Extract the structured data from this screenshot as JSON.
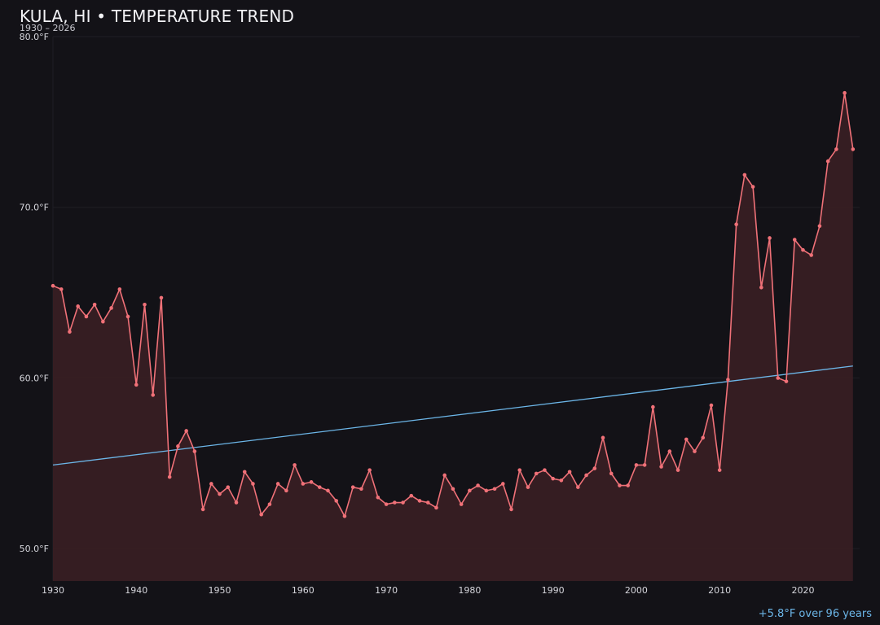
{
  "header": {
    "title": "KULA, HI • TEMPERATURE TREND",
    "subtitle": "1930 – 2026"
  },
  "footer": {
    "trend_note": "+5.8°F over 96 years"
  },
  "colors": {
    "background": "#131217",
    "series": "#f07178",
    "area_fill": "#3a1f24",
    "trend": "#6cb6e8",
    "grid": "#1f1e24"
  },
  "chart_data": {
    "type": "line",
    "title": "KULA, HI • TEMPERATURE TREND",
    "subtitle": "1930 – 2026",
    "xlabel": "",
    "ylabel": "",
    "xlim": [
      1930,
      2026.8
    ],
    "ylim": [
      48.1,
      80.0
    ],
    "x_ticks": [
      1930,
      1940,
      1950,
      1960,
      1970,
      1980,
      1990,
      2000,
      2010,
      2020
    ],
    "y_ticks": [
      50,
      60,
      70,
      80
    ],
    "y_tick_labels": [
      "50.0°F",
      "60.0°F",
      "70.0°F",
      "80.0°F"
    ],
    "grid": true,
    "area_fill": true,
    "series": [
      {
        "x": [
          1930,
          1931,
          1932,
          1933,
          1934,
          1935,
          1936,
          1937,
          1938,
          1939,
          1940,
          1941,
          1942,
          1943,
          1944,
          1945,
          1946,
          1947,
          1948,
          1949,
          1950,
          1951,
          1952,
          1953,
          1954,
          1955,
          1956,
          1957,
          1958,
          1959,
          1960,
          1961,
          1962,
          1963,
          1964,
          1965,
          1966,
          1967,
          1968,
          1969,
          1970,
          1971,
          1972,
          1973,
          1974,
          1975,
          1976,
          1977,
          1978,
          1979,
          1980,
          1981,
          1982,
          1983,
          1984,
          1985,
          1986,
          1987,
          1988,
          1989,
          1990,
          1991,
          1992,
          1993,
          1994,
          1995,
          1996,
          1997,
          1998,
          1999,
          2000,
          2001,
          2002,
          2003,
          2004,
          2005,
          2006,
          2007,
          2008,
          2009,
          2010,
          2011,
          2012,
          2013,
          2014,
          2015,
          2016,
          2017,
          2018,
          2019,
          2020,
          2021,
          2022,
          2023,
          2024,
          2025,
          2026
        ],
        "values": [
          65.4,
          65.2,
          62.7,
          64.2,
          63.6,
          64.3,
          63.3,
          64.1,
          65.2,
          63.6,
          59.6,
          64.3,
          59.0,
          64.7,
          54.2,
          56.0,
          56.9,
          55.7,
          52.3,
          53.8,
          53.2,
          53.6,
          52.7,
          54.5,
          53.8,
          52.0,
          52.6,
          53.8,
          53.4,
          54.9,
          53.8,
          53.9,
          53.6,
          53.4,
          52.8,
          51.9,
          53.6,
          53.5,
          54.6,
          53.0,
          52.6,
          52.7,
          52.7,
          53.1,
          52.8,
          52.7,
          52.4,
          54.3,
          53.5,
          52.6,
          53.4,
          53.7,
          53.4,
          53.5,
          53.8,
          52.3,
          54.6,
          53.6,
          54.4,
          54.6,
          54.1,
          54.0,
          54.5,
          53.6,
          54.3,
          54.7,
          56.5,
          54.4,
          53.7,
          53.7,
          54.9,
          54.9,
          58.3,
          54.8,
          55.7,
          54.6,
          56.4,
          55.7,
          56.5,
          58.4,
          54.6,
          59.9,
          69.0,
          71.9,
          71.2,
          65.3,
          68.2,
          60.0,
          59.8,
          68.1,
          67.5,
          67.2,
          68.9,
          72.7,
          73.4,
          76.7,
          73.4
        ]
      }
    ],
    "trend_line": {
      "x": [
        1930,
        2026
      ],
      "values": [
        54.9,
        60.7
      ]
    }
  }
}
